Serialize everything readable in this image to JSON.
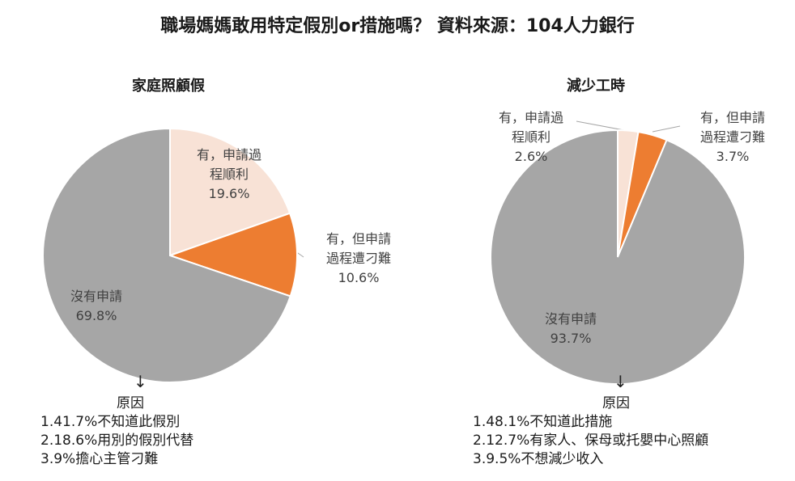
{
  "title": "職場媽媽敢用特定假別or措施嗎？ 資料來源：104人力銀行",
  "colors": {
    "applied_smoothly": "#f8e2d6",
    "applied_difficult": "#ed7d31",
    "not_applied": "#a6a6a6",
    "border": "#ffffff"
  },
  "chart_data": [
    {
      "type": "pie",
      "title": "家庭照顧假",
      "slices": [
        {
          "label_line1": "有，申請過",
          "label_line2": "程順利",
          "value": 19.6,
          "display": "19.6%"
        },
        {
          "label_line1": "有，但申請",
          "label_line2": "過程遭刁難",
          "value": 10.6,
          "display": "10.6%"
        },
        {
          "label_line1": "沒有申請",
          "label_line2": "",
          "value": 69.8,
          "display": "69.8%"
        }
      ],
      "reasons_heading": "原因",
      "reasons": [
        "1.41.7%不知道此假別",
        "2.18.6%用別的假別代替",
        "3.9%擔心主管刁難"
      ]
    },
    {
      "type": "pie",
      "title": "減少工時",
      "slices": [
        {
          "label_line1": "有，申請過",
          "label_line2": "程順利",
          "value": 2.6,
          "display": "2.6%"
        },
        {
          "label_line1": "有，但申請",
          "label_line2": "過程遭刁難",
          "value": 3.7,
          "display": "3.7%"
        },
        {
          "label_line1": "沒有申請",
          "label_line2": "",
          "value": 93.7,
          "display": "93.7%"
        }
      ],
      "reasons_heading": "原因",
      "reasons": [
        "1.48.1%不知道此措施",
        "2.12.7%有家人、保母或托嬰中心照顧",
        "3.9.5%不想減少收入"
      ]
    }
  ]
}
